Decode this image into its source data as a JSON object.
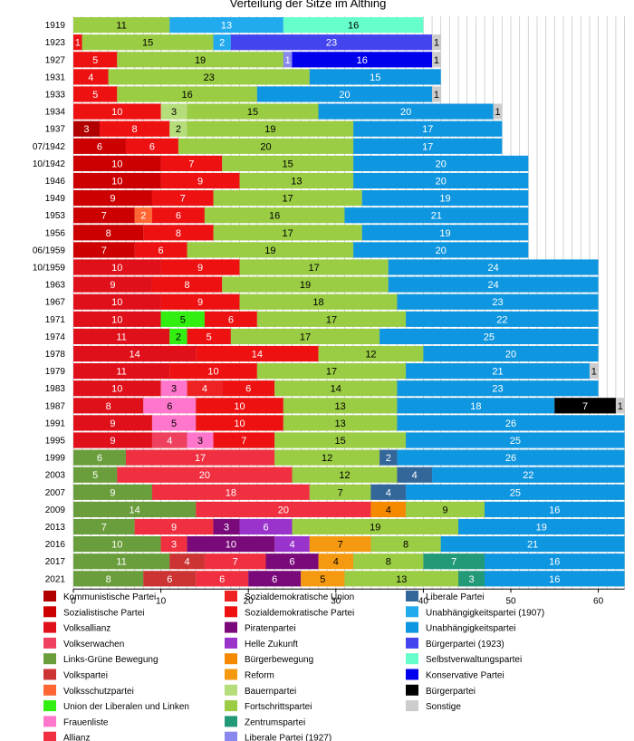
{
  "chart_data": {
    "type": "bar",
    "orientation": "horizontal",
    "stacked": true,
    "title": "Verteilung der Sitze im Althing",
    "xlim": [
      0,
      63
    ],
    "x_ticks": [
      0,
      10,
      20,
      30,
      40,
      50,
      60
    ],
    "grid": "vertical",
    "legend_position": "bottom",
    "parties": [
      {
        "key": "KP",
        "name": "Kommunistische Partei",
        "color": "#b00000"
      },
      {
        "key": "SP",
        "name": "Sozialistische Partei",
        "color": "#cc0000"
      },
      {
        "key": "VA",
        "name": "Volksallianz",
        "color": "#e0101a"
      },
      {
        "key": "VW",
        "name": "Volkserwachen",
        "color": "#f04060"
      },
      {
        "key": "LG",
        "name": "Links-Grüne Bewegung",
        "color": "#6a9e3c"
      },
      {
        "key": "VP",
        "name": "Volkspartei",
        "color": "#cc3333"
      },
      {
        "key": "VS",
        "name": "Volksschutzpartei",
        "color": "#ff6633"
      },
      {
        "key": "UL",
        "name": "Union der Liberalen und Linken",
        "color": "#33ee11"
      },
      {
        "key": "FL",
        "name": "Frauenliste",
        "color": "#ff77cc"
      },
      {
        "key": "AL",
        "name": "Allianz",
        "color": "#f03040"
      },
      {
        "key": "SU",
        "name": "Sozialdemokratische Union",
        "color": "#ee2222"
      },
      {
        "key": "SD",
        "name": "Sozialdemokratische Partei",
        "color": "#ee1111"
      },
      {
        "key": "PI",
        "name": "Piratenpartei",
        "color": "#7a0a7a"
      },
      {
        "key": "HZ",
        "name": "Helle Zukunft",
        "color": "#9933cc"
      },
      {
        "key": "BB",
        "name": "Bürgerbewegung",
        "color": "#f58a00"
      },
      {
        "key": "RF",
        "name": "Reform",
        "color": "#f59a10"
      },
      {
        "key": "BP",
        "name": "Bauernpartei",
        "color": "#b5dd7a"
      },
      {
        "key": "FP",
        "name": "Fortschrittspartei",
        "color": "#9acc44"
      },
      {
        "key": "ZP",
        "name": "Zentrumspartei",
        "color": "#229977"
      },
      {
        "key": "LP27",
        "name": "Liberale Partei (1927)",
        "color": "#8888ee"
      },
      {
        "key": "LP",
        "name": "Liberale Partei",
        "color": "#336699"
      },
      {
        "key": "UP07",
        "name": "Unabhängigkeitspartei (1907)",
        "color": "#22aaee"
      },
      {
        "key": "UP",
        "name": "Unabhängigkeitspartei",
        "color": "#0f96e0"
      },
      {
        "key": "BU23",
        "name": "Bürgerpartei (1923)",
        "color": "#4444ee"
      },
      {
        "key": "SV",
        "name": "Selbstverwaltungspartei",
        "color": "#66ffcc"
      },
      {
        "key": "KO",
        "name": "Konservative Partei",
        "color": "#0000ee"
      },
      {
        "key": "BU",
        "name": "Bürgerpartei",
        "color": "#000000"
      },
      {
        "key": "SO",
        "name": "Sonstige",
        "color": "#cccccc"
      }
    ],
    "rows": [
      {
        "year": "1919",
        "segments": [
          [
            "FP",
            11
          ],
          [
            "UP07",
            13
          ],
          [
            "SV",
            16
          ]
        ]
      },
      {
        "year": "1923",
        "segments": [
          [
            "SD",
            1
          ],
          [
            "FP",
            15
          ],
          [
            "UP07",
            2
          ],
          [
            "BU23",
            23
          ],
          [
            "SO",
            1
          ]
        ]
      },
      {
        "year": "1927",
        "segments": [
          [
            "SD",
            5
          ],
          [
            "FP",
            19
          ],
          [
            "LP27",
            1
          ],
          [
            "KO",
            16
          ],
          [
            "SO",
            1
          ]
        ]
      },
      {
        "year": "1931",
        "segments": [
          [
            "SD",
            4
          ],
          [
            "FP",
            23
          ],
          [
            "UP",
            15
          ]
        ]
      },
      {
        "year": "1933",
        "segments": [
          [
            "SD",
            5
          ],
          [
            "FP",
            16
          ],
          [
            "UP",
            20
          ],
          [
            "SO",
            1
          ]
        ]
      },
      {
        "year": "1934",
        "segments": [
          [
            "SD",
            10
          ],
          [
            "BP",
            3
          ],
          [
            "FP",
            15
          ],
          [
            "UP",
            20
          ],
          [
            "SO",
            1
          ]
        ]
      },
      {
        "year": "1937",
        "segments": [
          [
            "KP",
            3
          ],
          [
            "SD",
            8
          ],
          [
            "BP",
            2
          ],
          [
            "FP",
            19
          ],
          [
            "UP",
            17
          ]
        ]
      },
      {
        "year": "07/1942",
        "segments": [
          [
            "SP",
            6
          ],
          [
            "SD",
            6
          ],
          [
            "FP",
            20
          ],
          [
            "UP",
            17
          ]
        ]
      },
      {
        "year": "10/1942",
        "segments": [
          [
            "SP",
            10
          ],
          [
            "SD",
            7
          ],
          [
            "FP",
            15
          ],
          [
            "UP",
            20
          ]
        ]
      },
      {
        "year": "1946",
        "segments": [
          [
            "SP",
            10
          ],
          [
            "SD",
            9
          ],
          [
            "FP",
            13
          ],
          [
            "UP",
            20
          ]
        ]
      },
      {
        "year": "1949",
        "segments": [
          [
            "SP",
            9
          ],
          [
            "SD",
            7
          ],
          [
            "FP",
            17
          ],
          [
            "UP",
            19
          ]
        ]
      },
      {
        "year": "1953",
        "segments": [
          [
            "SP",
            7
          ],
          [
            "VS",
            2
          ],
          [
            "SD",
            6
          ],
          [
            "FP",
            16
          ],
          [
            "UP",
            21
          ]
        ]
      },
      {
        "year": "1956",
        "segments": [
          [
            "SP",
            8
          ],
          [
            "SD",
            8
          ],
          [
            "FP",
            17
          ],
          [
            "UP",
            19
          ]
        ]
      },
      {
        "year": "06/1959",
        "segments": [
          [
            "SP",
            7
          ],
          [
            "SD",
            6
          ],
          [
            "FP",
            19
          ],
          [
            "UP",
            20
          ]
        ]
      },
      {
        "year": "10/1959",
        "segments": [
          [
            "VA",
            10
          ],
          [
            "SD",
            9
          ],
          [
            "FP",
            17
          ],
          [
            "UP",
            24
          ]
        ]
      },
      {
        "year": "1963",
        "segments": [
          [
            "VA",
            9
          ],
          [
            "SD",
            8
          ],
          [
            "FP",
            19
          ],
          [
            "UP",
            24
          ]
        ]
      },
      {
        "year": "1967",
        "segments": [
          [
            "VA",
            10
          ],
          [
            "SD",
            9
          ],
          [
            "FP",
            18
          ],
          [
            "UP",
            23
          ]
        ]
      },
      {
        "year": "1971",
        "segments": [
          [
            "VA",
            10
          ],
          [
            "UL",
            5
          ],
          [
            "SD",
            6
          ],
          [
            "FP",
            17
          ],
          [
            "UP",
            22
          ]
        ]
      },
      {
        "year": "1974",
        "segments": [
          [
            "VA",
            11
          ],
          [
            "UL",
            2
          ],
          [
            "SD",
            5
          ],
          [
            "FP",
            17
          ],
          [
            "UP",
            25
          ]
        ]
      },
      {
        "year": "1978",
        "segments": [
          [
            "VA",
            14
          ],
          [
            "SD",
            14
          ],
          [
            "FP",
            12
          ],
          [
            "UP",
            20
          ]
        ]
      },
      {
        "year": "1979",
        "segments": [
          [
            "VA",
            11
          ],
          [
            "SD",
            10
          ],
          [
            "FP",
            17
          ],
          [
            "UP",
            21
          ],
          [
            "SO",
            1
          ]
        ]
      },
      {
        "year": "1983",
        "segments": [
          [
            "VA",
            10
          ],
          [
            "FL",
            3
          ],
          [
            "SU",
            4
          ],
          [
            "SD",
            6
          ],
          [
            "FP",
            14
          ],
          [
            "UP",
            23
          ]
        ]
      },
      {
        "year": "1987",
        "segments": [
          [
            "VA",
            8
          ],
          [
            "FL",
            6
          ],
          [
            "SD",
            10
          ],
          [
            "FP",
            13
          ],
          [
            "UP",
            18
          ],
          [
            "BU",
            7
          ],
          [
            "SO",
            1
          ]
        ]
      },
      {
        "year": "1991",
        "segments": [
          [
            "VA",
            9
          ],
          [
            "FL",
            5
          ],
          [
            "SD",
            10
          ],
          [
            "FP",
            13
          ],
          [
            "UP",
            26
          ]
        ]
      },
      {
        "year": "1995",
        "segments": [
          [
            "VA",
            9
          ],
          [
            "VW",
            4
          ],
          [
            "FL",
            3
          ],
          [
            "SD",
            7
          ],
          [
            "FP",
            15
          ],
          [
            "UP",
            25
          ]
        ]
      },
      {
        "year": "1999",
        "segments": [
          [
            "LG",
            6
          ],
          [
            "AL",
            17
          ],
          [
            "FP",
            12
          ],
          [
            "LP",
            2
          ],
          [
            "UP",
            26
          ]
        ]
      },
      {
        "year": "2003",
        "segments": [
          [
            "LG",
            5
          ],
          [
            "AL",
            20
          ],
          [
            "FP",
            12
          ],
          [
            "LP",
            4
          ],
          [
            "UP",
            22
          ]
        ]
      },
      {
        "year": "2007",
        "segments": [
          [
            "LG",
            9
          ],
          [
            "AL",
            18
          ],
          [
            "FP",
            7
          ],
          [
            "LP",
            4
          ],
          [
            "UP",
            25
          ]
        ]
      },
      {
        "year": "2009",
        "segments": [
          [
            "LG",
            14
          ],
          [
            "AL",
            20
          ],
          [
            "BB",
            4
          ],
          [
            "FP",
            9
          ],
          [
            "UP",
            16
          ]
        ]
      },
      {
        "year": "2013",
        "segments": [
          [
            "LG",
            7
          ],
          [
            "AL",
            9
          ],
          [
            "PI",
            3
          ],
          [
            "HZ",
            6
          ],
          [
            "FP",
            19
          ],
          [
            "UP",
            19
          ]
        ]
      },
      {
        "year": "2016",
        "segments": [
          [
            "LG",
            10
          ],
          [
            "AL",
            3
          ],
          [
            "PI",
            10
          ],
          [
            "HZ",
            4
          ],
          [
            "RF",
            7
          ],
          [
            "FP",
            8
          ],
          [
            "UP",
            21
          ]
        ]
      },
      {
        "year": "2017",
        "segments": [
          [
            "LG",
            11
          ],
          [
            "VP",
            4
          ],
          [
            "AL",
            7
          ],
          [
            "PI",
            6
          ],
          [
            "RF",
            4
          ],
          [
            "FP",
            8
          ],
          [
            "ZP",
            7
          ],
          [
            "UP",
            16
          ]
        ]
      },
      {
        "year": "2021",
        "segments": [
          [
            "LG",
            8
          ],
          [
            "VP",
            6
          ],
          [
            "AL",
            6
          ],
          [
            "PI",
            6
          ],
          [
            "RF",
            5
          ],
          [
            "FP",
            13
          ],
          [
            "ZP",
            3
          ],
          [
            "UP",
            16
          ]
        ]
      }
    ]
  }
}
